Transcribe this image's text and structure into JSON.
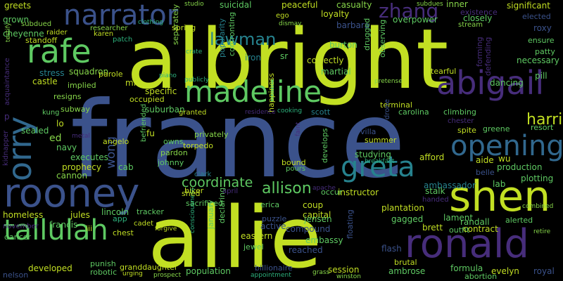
{
  "palette": {
    "yellow_green": "#c2df23",
    "green": "#5ec962",
    "teal": "#26828e",
    "blue": "#3b528b",
    "indigo": "#472d7b",
    "purple": "#440154",
    "light_green": "#86d549",
    "sea_green": "#2db27d",
    "cyan": "#21918c",
    "navy": "#31688e"
  },
  "words": [
    "france",
    "albright",
    "allie",
    "rooney",
    "shen",
    "ronald",
    "madeline",
    "narrator",
    "rafe",
    "orry",
    "abigail",
    "tallulah",
    "opening",
    "greta",
    "zhang",
    "lawman",
    "harris",
    "allison",
    "coordinate",
    "wong",
    "greets",
    "grown",
    "cheyenne",
    "raider",
    "standoff",
    "subdued",
    "karen",
    "patch",
    "researcher",
    "suicidal",
    "peaceful",
    "casualty",
    "inner",
    "existence",
    "significant",
    "elected",
    "roxy",
    "ensure",
    "patty",
    "necessary",
    "pill",
    "dancing",
    "loyalty",
    "barbara",
    "overpower",
    "closely",
    "stream",
    "forming",
    "defending",
    "stress",
    "squadron",
    "castle",
    "implied",
    "resigns",
    "acquaintance",
    "parole",
    "mill",
    "specific",
    "occupied",
    "subway",
    "kung",
    "lo",
    "sealed",
    "ed",
    "navy",
    "executes",
    "prophecy",
    "cannon",
    "kidnapper",
    "angelo",
    "fu",
    "cab",
    "owns",
    "pardon",
    "johnny",
    "befriended",
    "privately",
    "torpedo",
    "clark",
    "happiness",
    "bound",
    "pours",
    "afford",
    "aide",
    "production",
    "plotting",
    "belle",
    "lab",
    "ambassador",
    "stalk",
    "instructor",
    "occur",
    "coup",
    "capital",
    "plantation",
    "gagged",
    "handed",
    "lament",
    "randall",
    "alerted",
    "brett",
    "outfit",
    "contract",
    "formula",
    "evelyn",
    "royal",
    "abortion",
    "ambrose",
    "brutal",
    "session",
    "billionaire",
    "population",
    "granddaughter",
    "robotic",
    "nelson",
    "dancer",
    "developed",
    "punish",
    "chest",
    "cadet",
    "app",
    "lincoln",
    "tracker",
    "jules",
    "francis",
    "iii",
    "homeless",
    "november",
    "biker",
    "sacrificed",
    "erica",
    "jewel",
    "declaring",
    "january",
    "active",
    "puzzle",
    "eastern",
    "compound",
    "embassy",
    "jensen",
    "reached",
    "floating",
    "flash",
    "terminal",
    "carolina",
    "climbing",
    "spite",
    "greene",
    "chester",
    "resort",
    "villa",
    "summer",
    "drone",
    "studying",
    "develops",
    "scott",
    "suburban",
    "granted",
    "iron",
    "confronting",
    "popularity",
    "martial",
    "correctly",
    "drugged",
    "observing",
    "tearful",
    "burton",
    "sr",
    "separately",
    "spring",
    "clothing",
    "studio",
    "dismay",
    "ego",
    "crate",
    "piano",
    "publicly",
    "pretense",
    "subdues",
    "testify",
    "residence",
    "cooking",
    "faint",
    "breakfast",
    "metal",
    "apache",
    "april",
    "forgive",
    "consciousness",
    "urging",
    "prospect",
    "appointment",
    "grass",
    "winston",
    "combined",
    "retire",
    "wu",
    "shed",
    "p"
  ]
}
